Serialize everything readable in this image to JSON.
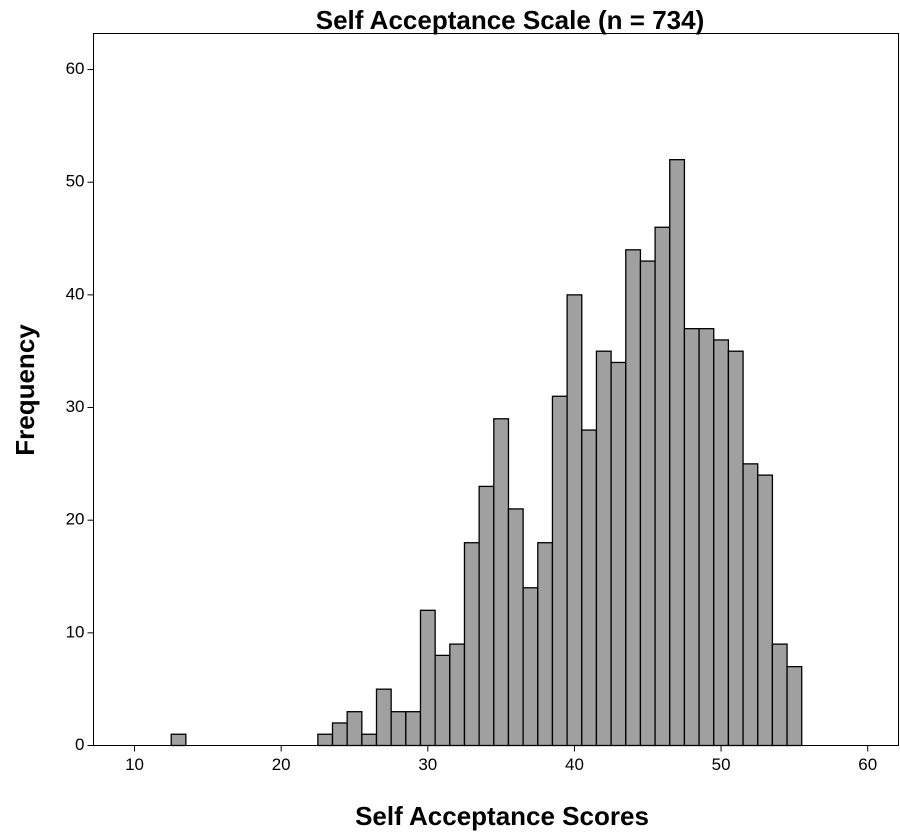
{
  "chart_data": {
    "type": "histogram",
    "title": "Self Acceptance Scale (n = 734)",
    "x_label": "Self Acceptance Scores",
    "y_label": "Frequency",
    "bins": [
      12.5,
      13.5,
      14.5,
      15.5,
      16.5,
      17.5,
      18.5,
      19.5,
      20.5,
      21.5,
      22.5,
      23.5,
      24.5,
      25.5,
      26.5,
      27.5,
      28.5,
      29.5,
      30.5,
      31.5,
      32.5,
      33.5,
      34.5,
      35.5,
      36.5,
      37.5,
      38.5,
      39.5,
      40.5,
      41.5,
      42.5,
      43.5,
      44.5,
      45.5,
      46.5,
      47.5,
      48.5,
      49.5,
      50.5,
      51.5,
      52.5,
      53.5,
      54.5,
      55.5
    ],
    "values": [
      1,
      0,
      0,
      0,
      0,
      0,
      0,
      0,
      0,
      0,
      1,
      2,
      3,
      1,
      5,
      3,
      3,
      12,
      8,
      9,
      18,
      23,
      29,
      21,
      14,
      18,
      31,
      40,
      28,
      35,
      34,
      44,
      43,
      46,
      52,
      37,
      37,
      36,
      35,
      25,
      24,
      9,
      7
    ],
    "color": "#a0a0a0",
    "xlim": [
      7.2,
      62.1
    ],
    "xticks": [
      10,
      20,
      30,
      40,
      50,
      60
    ],
    "ylim": [
      0,
      63.2
    ],
    "yticks": [
      0,
      10,
      20,
      30,
      40,
      50,
      60
    ]
  }
}
